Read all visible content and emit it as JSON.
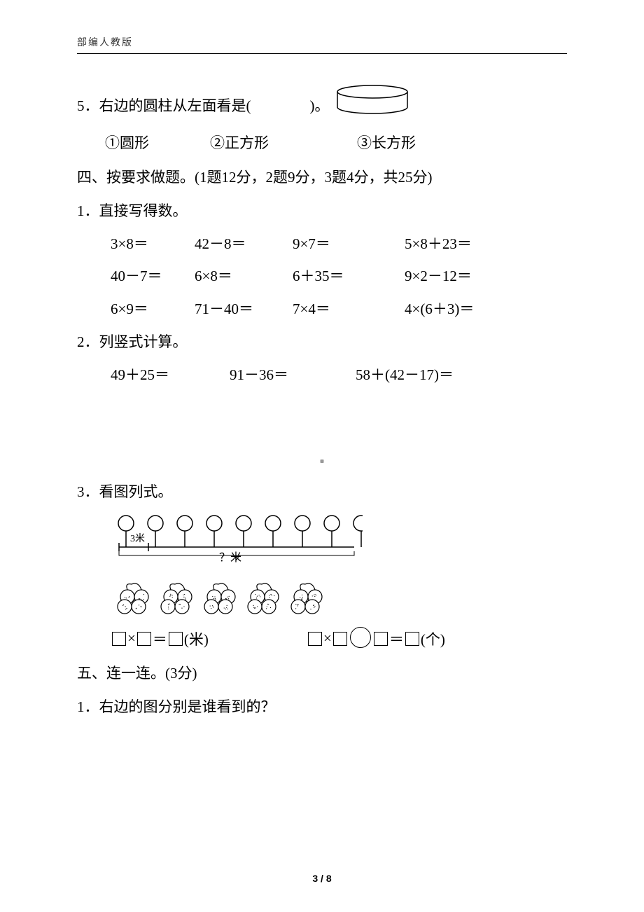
{
  "header": {
    "label": "部编人教版"
  },
  "q5": {
    "text": "5．右边的圆柱从左面看是(　　　　)。",
    "options": {
      "a": "①圆形",
      "b": "②正方形",
      "c": "③长方形"
    },
    "cylinder": {
      "stroke": "#000000",
      "fill": "#ffffff",
      "width": 110,
      "height": 42
    }
  },
  "section4": {
    "heading": "四、按要求做题。(1题12分，2题9分，3题4分，共25分)",
    "p1": {
      "title": "1．直接写得数。",
      "rows": [
        [
          "3×8＝",
          "42－8＝",
          "9×7＝",
          "5×8＋23＝"
        ],
        [
          "40－7＝",
          "6×8＝",
          "6＋35＝",
          "9×2－12＝"
        ],
        [
          "6×9＝",
          "71－40＝",
          "7×4＝",
          "4×(6＋3)＝"
        ]
      ]
    },
    "p2": {
      "title": "2．列竖式计算。",
      "items": [
        "49＋25＝",
        "91－36＝",
        "58＋(42－17)＝"
      ]
    },
    "p3": {
      "title": "3．看图列式。",
      "fig1": {
        "balloon_count": 9,
        "gap_label": "3米",
        "total_label": "？米",
        "stroke": "#000000"
      },
      "fig2": {
        "group_count": 5,
        "oranges_per_group": 4,
        "stroke": "#000000"
      },
      "eq_left_unit": "(米)",
      "eq_right_unit": "(个)"
    }
  },
  "section5": {
    "heading": "五、连一连。(3分)",
    "p1": "1．右边的图分别是谁看到的？"
  },
  "footer": {
    "page": "3",
    "sep": "/",
    "total": "8"
  },
  "colors": {
    "text": "#000000",
    "background": "#ffffff",
    "rule": "#000000"
  }
}
